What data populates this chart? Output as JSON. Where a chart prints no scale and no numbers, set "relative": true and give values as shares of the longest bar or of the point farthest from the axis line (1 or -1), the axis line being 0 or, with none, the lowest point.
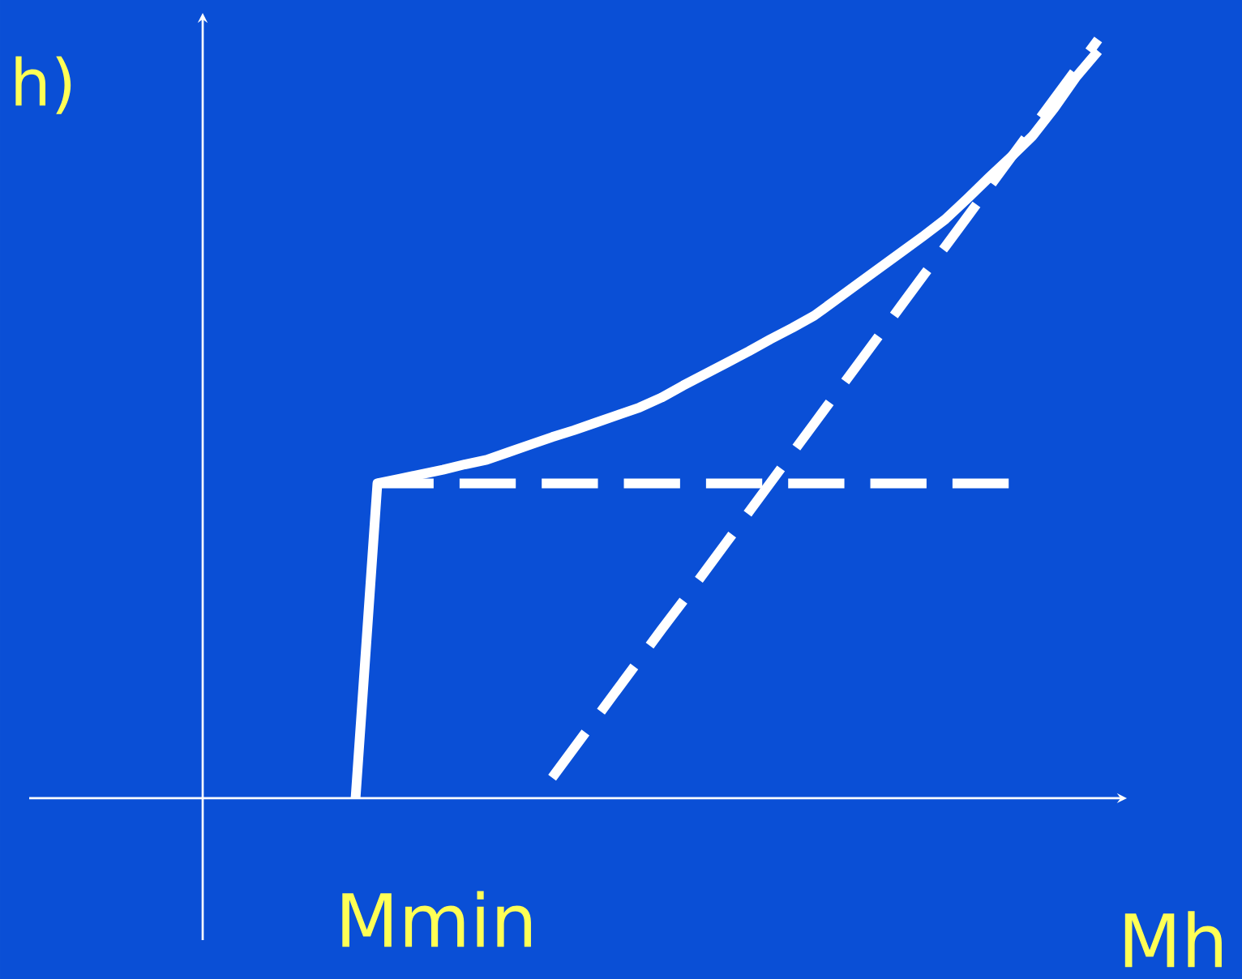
{
  "chart_data": {
    "type": "line",
    "relative": true,
    "xlabel": "Mh",
    "ylabel": "h)",
    "annotations": [
      "Mmin"
    ],
    "categories": [
      null,
      null,
      null,
      null,
      null,
      null,
      null,
      null,
      null,
      null,
      null,
      null,
      null,
      null,
      null,
      null,
      null,
      null,
      null,
      null,
      null,
      null,
      null,
      null,
      null,
      null,
      null,
      null,
      null,
      null,
      null,
      null,
      null,
      null,
      null,
      null,
      null,
      null,
      null,
      null,
      null,
      null
    ],
    "series": [
      {
        "color": "#ffffff",
        "line_style": "solid",
        "values": [
          null,
          null,
          null,
          null,
          null,
          null,
          null,
          0,
          0.415,
          0.421,
          0.427,
          0.433,
          0.44,
          0.446,
          0.456,
          0.466,
          0.476,
          0.485,
          0.495,
          0.505,
          0.515,
          0.528,
          0.544,
          0.559,
          0.574,
          0.589,
          0.605,
          0.62,
          0.636,
          0.657,
          0.678,
          0.699,
          0.72,
          0.741,
          0.763,
          0.79,
          0.818,
          0.845,
          0.873,
          0.91,
          0.951,
          0.985
        ]
      },
      {
        "color": "#ffffff",
        "line_style": "dashed",
        "values": [
          null,
          null,
          null,
          null,
          null,
          null,
          null,
          null,
          0.415,
          0.415,
          0.415,
          0.415,
          0.415,
          0.415,
          0.415,
          0.415,
          0.415,
          0.415,
          0.415,
          0.415,
          0.415,
          0.415,
          0.415,
          0.415,
          0.415,
          0.415,
          0.415,
          0.415,
          0.415,
          0.415,
          0.415,
          0.415,
          0.415,
          0.415,
          0.415,
          0.415,
          0.415,
          0.415,
          null,
          null,
          null,
          null
        ]
      },
      {
        "color": "#ffffff",
        "line_style": "dashed",
        "values": [
          null,
          null,
          null,
          null,
          null,
          null,
          null,
          null,
          null,
          null,
          null,
          null,
          null,
          null,
          null,
          null,
          0.027,
          0.066,
          0.105,
          0.144,
          0.183,
          0.222,
          0.26,
          0.299,
          0.338,
          0.377,
          0.416,
          0.455,
          0.494,
          0.533,
          0.572,
          0.611,
          0.65,
          0.689,
          0.727,
          0.766,
          0.805,
          0.844,
          0.883,
          0.922,
          0.961,
          1.0
        ]
      }
    ]
  }
}
